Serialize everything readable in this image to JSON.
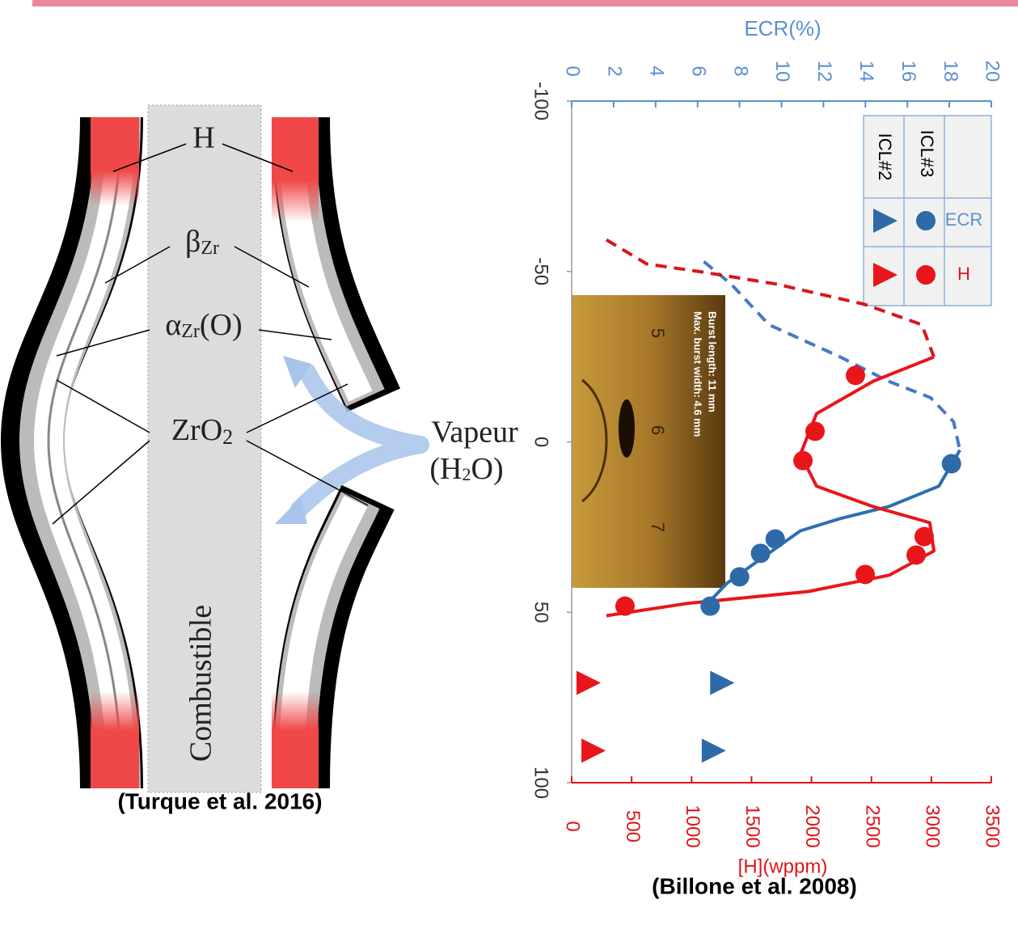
{
  "diagram": {
    "labels": {
      "h": "H",
      "beta": {
        "main": "β",
        "sub": "Zr"
      },
      "alpha": {
        "main": "α",
        "sub": "Zr",
        "tail": "(O)"
      },
      "zro2": {
        "main": "ZrO",
        "sub": "2"
      },
      "vapeur": {
        "line1": "Vapeur",
        "line2a": "(H",
        "line2sub": "2",
        "line2b": "O)"
      },
      "fuel": "Combustible"
    },
    "source": "(Turque et al. 2016)"
  },
  "chart_data": {
    "type": "scatter",
    "y_label": "ECR(%)",
    "y2_label": "[H](wppm)",
    "source": "(Billone et al. 2008)",
    "xlim": [
      -100,
      100
    ],
    "xticks": [
      -100,
      -50,
      0,
      50,
      100
    ],
    "ylim": [
      0,
      20
    ],
    "yticks": [
      0,
      2,
      4,
      6,
      8,
      10,
      12,
      14,
      16,
      18,
      20
    ],
    "y2lim": [
      0,
      3500
    ],
    "y2ticks": [
      0,
      500,
      1000,
      1500,
      2000,
      2500,
      3000,
      3500
    ],
    "legend": {
      "rows": [
        "ICL#2",
        "ICL#3"
      ],
      "columns": [
        "ECR",
        "H"
      ]
    },
    "series": [
      {
        "color": "#2e6aa8",
        "marker": "circle",
        "axis": "y",
        "x": [
          6.4,
          28.5,
          32.7,
          39.6,
          48.2
        ],
        "values": [
          18.1,
          9.7,
          9.0,
          8.0,
          6.6
        ]
      },
      {
        "color": "#e8161b",
        "marker": "circle",
        "axis": "y2",
        "x": [
          -19.5,
          -3.1,
          5.5,
          27.8,
          33.2,
          38.9,
          48.2
        ],
        "values": [
          2367,
          2030,
          1929,
          2940,
          2873,
          2448,
          445
        ]
      },
      {
        "color": "#2e6aa8",
        "marker": "triangle",
        "axis": "y",
        "x": [
          70.7,
          90.6
        ],
        "values": [
          7.1,
          6.7
        ]
      },
      {
        "color": "#e8161b",
        "marker": "triangle",
        "axis": "y2",
        "x": [
          70.7,
          90.6
        ],
        "values": [
          128,
          169
        ]
      }
    ],
    "curves": [
      {
        "color": "#4a78c4",
        "dashed": true,
        "axis": "y",
        "x": [
          -52.9,
          -46.3,
          -34.4,
          -24.9,
          -17.8,
          -13,
          -5.9,
          2.4
        ],
        "values": [
          6.3,
          7.6,
          9.4,
          12.8,
          15.1,
          17.1,
          18.2,
          18.5
        ]
      },
      {
        "color": "#2e6fb0",
        "dashed": false,
        "axis": "y",
        "x": [
          2.4,
          13,
          19,
          22.5,
          26.1,
          34.4,
          41.5,
          48.6
        ],
        "values": [
          18.5,
          17.5,
          15.1,
          12.8,
          10.9,
          9.0,
          7.4,
          6.3
        ]
      },
      {
        "color": "#d9161b",
        "dashed": true,
        "axis": "y2",
        "x": [
          -59.3,
          -52.2,
          -49.8,
          -46.3,
          -40.3,
          -34.4,
          -24.9
        ],
        "values": [
          290,
          627,
          1099,
          1706,
          2448,
          2920,
          3021
        ]
      },
      {
        "color": "#e8161b",
        "dashed": false,
        "axis": "y2",
        "x": [
          -24.9,
          -17.8,
          -8.3,
          3.6,
          13,
          19,
          23.7,
          32,
          39.1,
          43.9,
          47.4,
          51
        ],
        "values": [
          3021,
          2515,
          2043,
          1908,
          2043,
          2515,
          2987,
          3021,
          2650,
          1976,
          964,
          290
        ]
      }
    ],
    "inset": {
      "line1": "Burst length: 11 mm",
      "line2": "Max. burst width: 4.6 mm",
      "ruler": [
        5,
        6,
        7
      ]
    }
  }
}
